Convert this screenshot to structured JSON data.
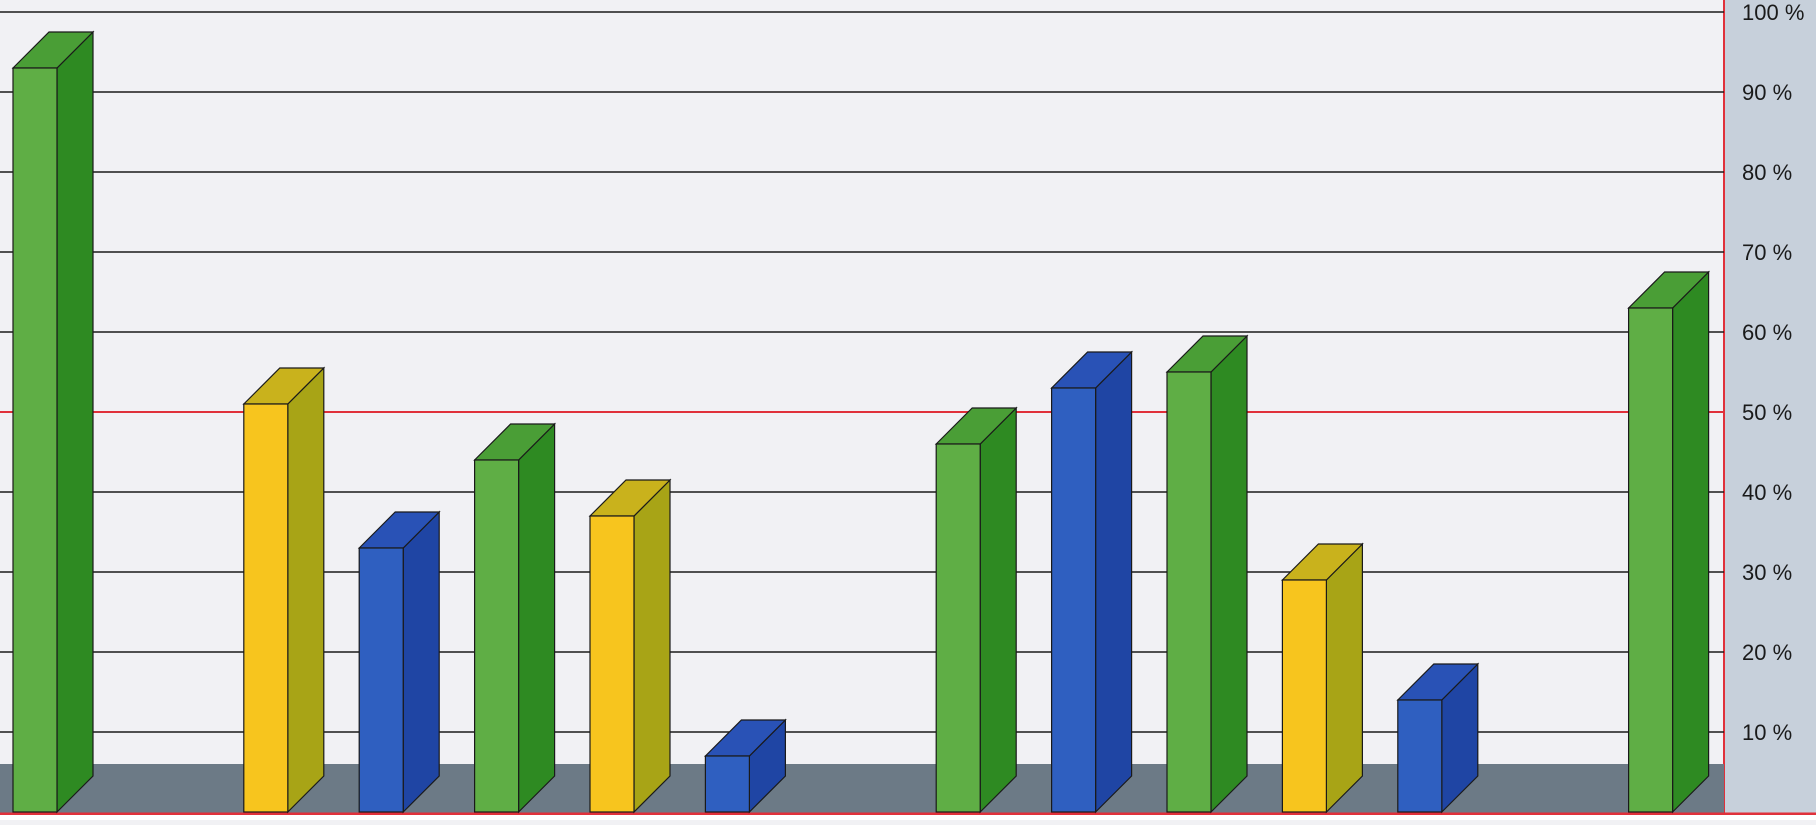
{
  "chart_data": {
    "type": "bar",
    "style": "3d-columns",
    "title": "",
    "xlabel": "",
    "ylabel": "",
    "ylim": [
      0,
      100
    ],
    "y_unit": "%",
    "y_ticks": [
      {
        "value": 10,
        "label": "10 %"
      },
      {
        "value": 20,
        "label": "20 %"
      },
      {
        "value": 30,
        "label": "30 %"
      },
      {
        "value": 40,
        "label": "40 %"
      },
      {
        "value": 50,
        "label": "50 %"
      },
      {
        "value": 60,
        "label": "60 %"
      },
      {
        "value": 70,
        "label": "70 %"
      },
      {
        "value": 80,
        "label": "80 %"
      },
      {
        "value": 90,
        "label": "90 %"
      },
      {
        "value": 100,
        "label": "100 %"
      }
    ],
    "reference_line": {
      "value": 50,
      "color": "#e0303a"
    },
    "grid": true,
    "axis_side": "right",
    "bars": [
      {
        "slot": 0,
        "value": 93,
        "color": "green"
      },
      {
        "slot": 2,
        "value": 51,
        "color": "yellow"
      },
      {
        "slot": 3,
        "value": 33,
        "color": "blue"
      },
      {
        "slot": 4,
        "value": 44,
        "color": "green"
      },
      {
        "slot": 5,
        "value": 37,
        "color": "yellow"
      },
      {
        "slot": 6,
        "value": 7,
        "color": "blue"
      },
      {
        "slot": 8,
        "value": 46,
        "color": "green"
      },
      {
        "slot": 9,
        "value": 53,
        "color": "blue"
      },
      {
        "slot": 10,
        "value": 55,
        "color": "green"
      },
      {
        "slot": 11,
        "value": 29,
        "color": "yellow"
      },
      {
        "slot": 12,
        "value": 14,
        "color": "blue"
      },
      {
        "slot": 14,
        "value": 63,
        "color": "green"
      }
    ],
    "palette": {
      "green": {
        "front": "#5fae45",
        "side": "#2e8a22",
        "top": "#4a9e36"
      },
      "yellow": {
        "front": "#f7c51e",
        "side": "#a8a416",
        "top": "#c9b21c"
      },
      "blue": {
        "front": "#2f5fc0",
        "side": "#1f45a4",
        "top": "#2952b6"
      }
    },
    "colors": {
      "background": "#f1f1f4",
      "grid": "#1a1a1a",
      "floor": "#6c7a86",
      "axis_panel": "#c7d0db",
      "axis_border": "#e0303a"
    }
  }
}
